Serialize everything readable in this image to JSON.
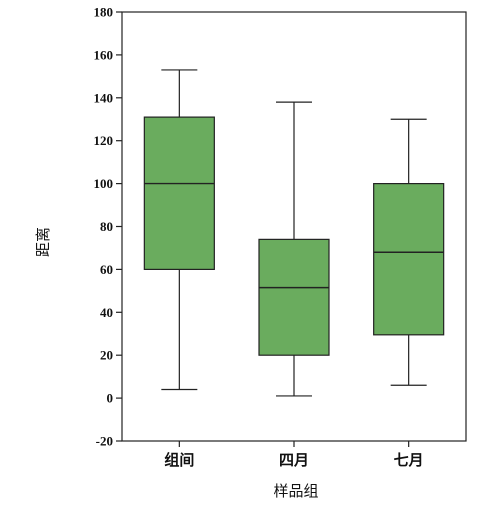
{
  "chart_data": {
    "type": "boxplot",
    "title": "",
    "xlabel": "样品组",
    "ylabel": "距离",
    "ylim": [
      -20,
      180
    ],
    "yticks": [
      -20,
      0,
      20,
      40,
      60,
      80,
      100,
      120,
      140,
      160,
      180
    ],
    "ytick_labels": [
      "-20",
      "0",
      "20",
      "40",
      "60",
      "80",
      "100",
      "120",
      "140",
      "160",
      "180"
    ],
    "categories": [
      "组间",
      "四月",
      "七月"
    ],
    "boxes": [
      {
        "category": "组间",
        "min": 4,
        "q1": 60,
        "median": 100,
        "q3": 131,
        "max": 153
      },
      {
        "category": "四月",
        "min": 1,
        "q1": 20,
        "median": 51.5,
        "q3": 74,
        "max": 138
      },
      {
        "category": "七月",
        "min": 6,
        "q1": 29.5,
        "median": 68,
        "q3": 100,
        "max": 130
      }
    ],
    "box_color": "#6aac5e",
    "line_color": "#222222",
    "grid": false,
    "legend": "none"
  }
}
